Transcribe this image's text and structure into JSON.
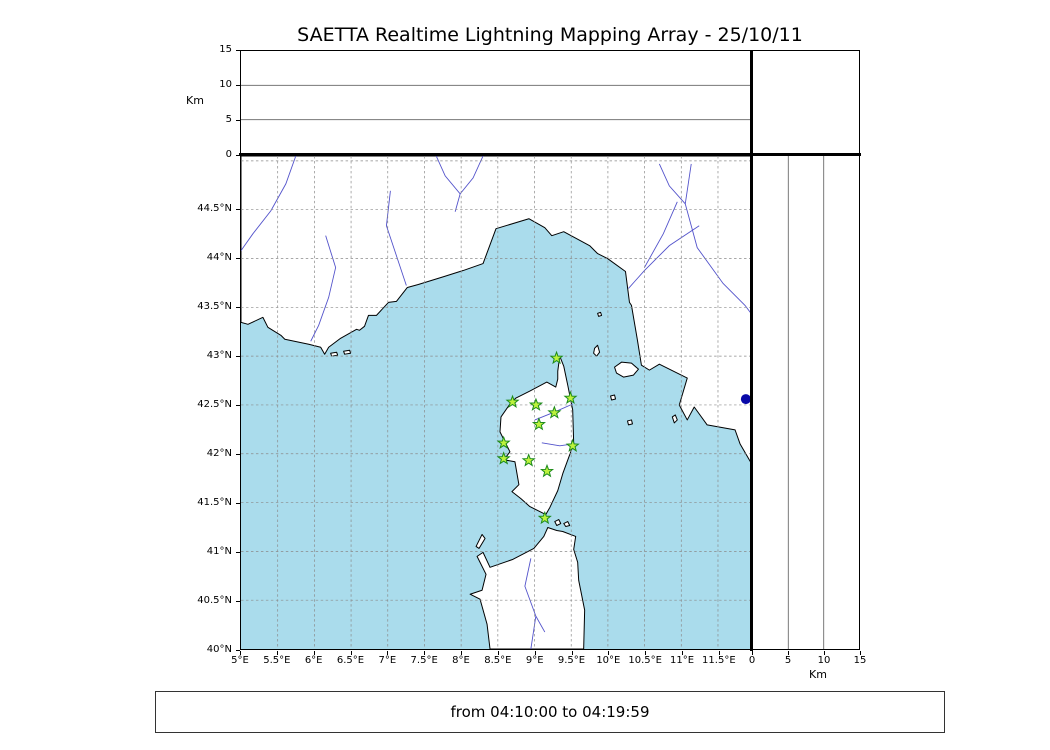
{
  "title": "SAETTA Realtime Lightning Mapping Array - 25/10/11",
  "time_label": "from 04:10:00 to 04:19:59",
  "chart_data": {
    "type": "scatter",
    "title": "SAETTA Realtime Lightning Mapping Array - 25/10/11",
    "time_window": "from 04:10:00 to 04:19:59",
    "map": {
      "lon_range": [
        5.0,
        11.95
      ],
      "lat_range": [
        40.0,
        45.05
      ],
      "grid_step_deg": 0.5,
      "grid_on": true,
      "lon_tick_values": [
        5,
        5.5,
        6,
        6.5,
        7,
        7.5,
        8,
        8.5,
        9,
        9.5,
        10,
        10.5,
        11,
        11.5
      ],
      "lon_tick_labels": [
        "5°E",
        "5.5°E",
        "6°E",
        "6.5°E",
        "7°E",
        "7.5°E",
        "8°E",
        "8.5°E",
        "9°E",
        "9.5°E",
        "10°E",
        "10.5°E",
        "11°E",
        "11.5°E"
      ],
      "lat_tick_values": [
        44.5,
        44,
        43.5,
        43,
        42.5,
        42,
        41.5,
        41,
        40.5,
        40
      ],
      "lat_tick_labels": [
        "44.5°N",
        "44°N",
        "43.5°N",
        "43°N",
        "42.5°N",
        "42°N",
        "41.5°N",
        "41°N",
        "40.5°N",
        "40°N"
      ],
      "sea_color": "#aadcec",
      "land_color": "#ffffff",
      "coast_color": "#000000",
      "river_color": "#5353cb",
      "stations": [
        {
          "lon": 9.3,
          "lat": 42.98
        },
        {
          "lon": 8.7,
          "lat": 42.53
        },
        {
          "lon": 9.02,
          "lat": 42.5
        },
        {
          "lon": 9.49,
          "lat": 42.57
        },
        {
          "lon": 9.27,
          "lat": 42.42
        },
        {
          "lon": 9.06,
          "lat": 42.3
        },
        {
          "lon": 8.58,
          "lat": 42.11
        },
        {
          "lon": 9.52,
          "lat": 42.08
        },
        {
          "lon": 8.58,
          "lat": 41.95
        },
        {
          "lon": 8.92,
          "lat": 41.93
        },
        {
          "lon": 9.17,
          "lat": 41.82
        },
        {
          "lon": 9.14,
          "lat": 41.34
        }
      ],
      "station_marker": {
        "shape": "star",
        "fill": "#bdf23d",
        "stroke": "#1c8a1c"
      },
      "highlight_point": {
        "lon": 11.88,
        "lat": 42.56,
        "color": "#0909a8",
        "shape": "circle"
      }
    },
    "altitude_panel_top": {
      "axis_label": "Km",
      "tick_values": [
        0,
        5,
        10,
        15
      ],
      "tick_labels": [
        "0",
        "5",
        "10",
        "15"
      ],
      "range_km": [
        0,
        15
      ],
      "gridline_values": [
        5,
        10
      ],
      "points": []
    },
    "altitude_panel_right": {
      "axis_label": "Km",
      "tick_values": [
        0,
        5,
        10,
        15
      ],
      "tick_labels": [
        "0",
        "5",
        "10",
        "15"
      ],
      "range_km": [
        0,
        15
      ],
      "gridline_values": [
        5,
        10
      ],
      "points": []
    }
  }
}
